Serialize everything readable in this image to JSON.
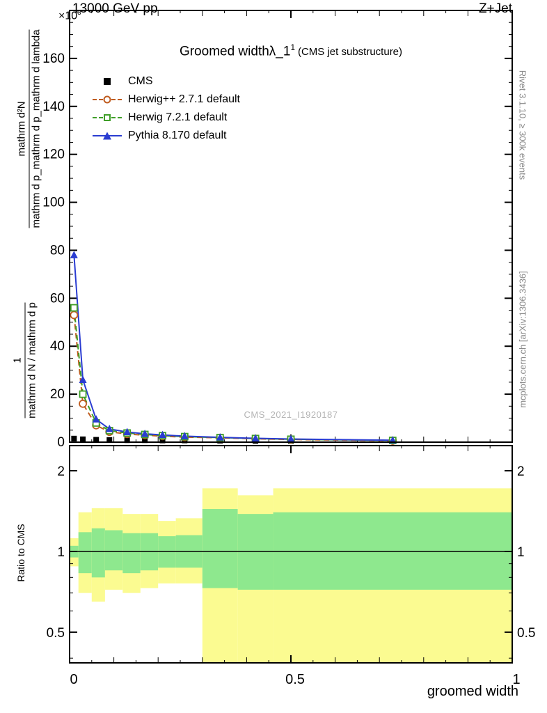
{
  "header": {
    "beam": "13000 GeV pp",
    "process": "Z+Jet"
  },
  "main_panel": {
    "y_exponent_base": "×10",
    "y_exponent_sup": "3",
    "title": {
      "main": "Groomed width",
      "symbol": "λ_1",
      "sup": "1",
      "context": "(CMS jet substructure)"
    },
    "watermark": "CMS_2021_I1920187",
    "ylabel": {
      "frac_upper_num": "mathrm d²N",
      "frac_upper_den": "mathrm d p_mathrm d p_mathrm d lambda",
      "frac_lower_num": "1",
      "frac_lower_den": "mathrm d N / mathrm d p"
    }
  },
  "legend": [
    {
      "id": "cms",
      "label": "CMS",
      "marker": "square-filled",
      "line": "none",
      "color": "#000000"
    },
    {
      "id": "herwigpp",
      "label": "Herwig++ 2.7.1 default",
      "marker": "circle-open",
      "line": "dashed",
      "color": "#bf5b1e"
    },
    {
      "id": "herwig7",
      "label": "Herwig 7.2.1 default",
      "marker": "square-open",
      "line": "dashed",
      "color": "#3f9e28"
    },
    {
      "id": "pythia8",
      "label": "Pythia 8.170 default",
      "marker": "triangle-filled",
      "line": "solid",
      "color": "#2a3cd1"
    }
  ],
  "sidebar_right": {
    "rivet": "Rivet 3.1.10, ≥ 300k events",
    "mcplots": "mcplots.cern.ch [arXiv:1306.3436]"
  },
  "ratio_panel": {
    "ylabel": "Ratio to CMS"
  },
  "xaxis": {
    "label": "groomed width"
  },
  "chart_data": {
    "type": "line",
    "title": "Groomed width λ_1^1 (CMS jet substructure)",
    "xlabel": "groomed width",
    "ylabel": "1/(dN/dp_T) d²N/(dp_T dλ)",
    "y_scale_note": "values in units of 10³ (axis multiplier ×10³)",
    "xlim": [
      0,
      1
    ],
    "ylim": [
      0,
      180
    ],
    "x_tick_values": [
      0,
      0.5,
      1
    ],
    "x_tick_labels": [
      "0",
      "0.5",
      "1"
    ],
    "y_ticks": [
      0,
      20,
      40,
      60,
      80,
      100,
      120,
      140,
      160
    ],
    "x": [
      0.01,
      0.03,
      0.06,
      0.09,
      0.13,
      0.17,
      0.21,
      0.26,
      0.34,
      0.42,
      0.5,
      0.73
    ],
    "series": [
      {
        "name": "CMS",
        "color": "#000000",
        "marker": "square-filled",
        "line": "none",
        "values": [
          1.5,
          1.2,
          1.0,
          0.9,
          0.8,
          0.8,
          0.7,
          0.7,
          0.6,
          0.5,
          0.5,
          0.4
        ]
      },
      {
        "name": "Herwig++ 2.7.1 default",
        "color": "#bf5b1e",
        "marker": "circle-open",
        "line": "dashed",
        "values": [
          53,
          16,
          7.0,
          4.3,
          3.4,
          2.9,
          2.5,
          2.1,
          1.8,
          1.4,
          1.1,
          0.6
        ]
      },
      {
        "name": "Herwig 7.2.1 default",
        "color": "#3f9e28",
        "marker": "square-open",
        "line": "dashed",
        "values": [
          56,
          20,
          8.0,
          4.8,
          3.8,
          3.2,
          2.7,
          2.3,
          1.9,
          1.5,
          1.2,
          0.7
        ]
      },
      {
        "name": "Pythia 8.170 default",
        "color": "#2a3cd1",
        "marker": "triangle-filled",
        "line": "solid",
        "values": [
          78,
          26,
          9.5,
          5.5,
          4.2,
          3.5,
          3.0,
          2.5,
          2.0,
          1.6,
          1.3,
          0.8
        ]
      }
    ],
    "ratio": {
      "ylabel": "Ratio to CMS",
      "scale": "log",
      "ylim": [
        0.38,
        2.48
      ],
      "y_ticks": [
        0.5,
        1,
        2
      ],
      "y_tick_labels": [
        "0.5",
        "1",
        "2"
      ],
      "y_minor_ticks": [
        0.4,
        0.6,
        0.7,
        0.8,
        0.9
      ],
      "reference": 1,
      "band_edges": [
        0,
        0.02,
        0.05,
        0.08,
        0.12,
        0.16,
        0.2,
        0.24,
        0.3,
        0.38,
        0.46,
        1.0
      ],
      "yellow_band": [
        [
          0.88,
          1.12
        ],
        [
          0.7,
          1.4
        ],
        [
          0.65,
          1.45
        ],
        [
          0.72,
          1.45
        ],
        [
          0.7,
          1.38
        ],
        [
          0.73,
          1.38
        ],
        [
          0.76,
          1.3
        ],
        [
          0.76,
          1.33
        ],
        [
          0.37,
          1.72
        ],
        [
          0.37,
          1.62
        ],
        [
          0.37,
          1.72
        ]
      ],
      "green_band": [
        [
          0.95,
          1.05
        ],
        [
          0.83,
          1.18
        ],
        [
          0.8,
          1.22
        ],
        [
          0.85,
          1.2
        ],
        [
          0.83,
          1.17
        ],
        [
          0.85,
          1.17
        ],
        [
          0.87,
          1.14
        ],
        [
          0.87,
          1.15
        ],
        [
          0.73,
          1.44
        ],
        [
          0.72,
          1.38
        ],
        [
          0.72,
          1.4
        ]
      ]
    },
    "colors": {
      "yellow_band": "#fbfb91",
      "green_band": "#8ee88e"
    }
  }
}
